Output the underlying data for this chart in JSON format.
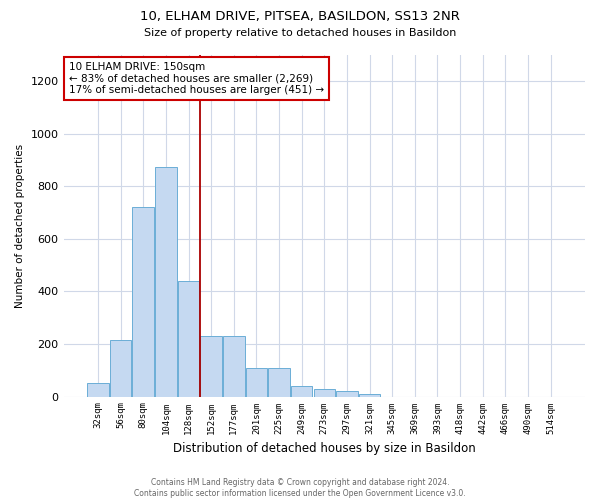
{
  "title": "10, ELHAM DRIVE, PITSEA, BASILDON, SS13 2NR",
  "subtitle": "Size of property relative to detached houses in Basildon",
  "xlabel": "Distribution of detached houses by size in Basildon",
  "ylabel": "Number of detached properties",
  "footer1": "Contains HM Land Registry data © Crown copyright and database right 2024.",
  "footer2": "Contains public sector information licensed under the Open Government Licence v3.0.",
  "annotation_line1": "10 ELHAM DRIVE: 150sqm",
  "annotation_line2": "← 83% of detached houses are smaller (2,269)",
  "annotation_line3": "17% of semi-detached houses are larger (451) →",
  "bar_labels": [
    "32sqm",
    "56sqm",
    "80sqm",
    "104sqm",
    "128sqm",
    "152sqm",
    "177sqm",
    "201sqm",
    "225sqm",
    "249sqm",
    "273sqm",
    "297sqm",
    "321sqm",
    "345sqm",
    "369sqm",
    "393sqm",
    "418sqm",
    "442sqm",
    "466sqm",
    "490sqm",
    "514sqm"
  ],
  "bar_values": [
    50,
    215,
    720,
    875,
    440,
    230,
    230,
    110,
    110,
    40,
    30,
    20,
    10,
    0,
    0,
    0,
    0,
    0,
    0,
    0,
    0
  ],
  "bar_color": "#c5d9f1",
  "bar_edge_color": "#6baed6",
  "marker_index": 5,
  "marker_color": "#aa0000",
  "ylim": [
    0,
    1300
  ],
  "yticks": [
    0,
    200,
    400,
    600,
    800,
    1000,
    1200
  ],
  "grid_color": "#d0d8e8",
  "annotation_box_color": "#ffffff",
  "annotation_box_edge": "#cc0000",
  "background_color": "#ffffff"
}
